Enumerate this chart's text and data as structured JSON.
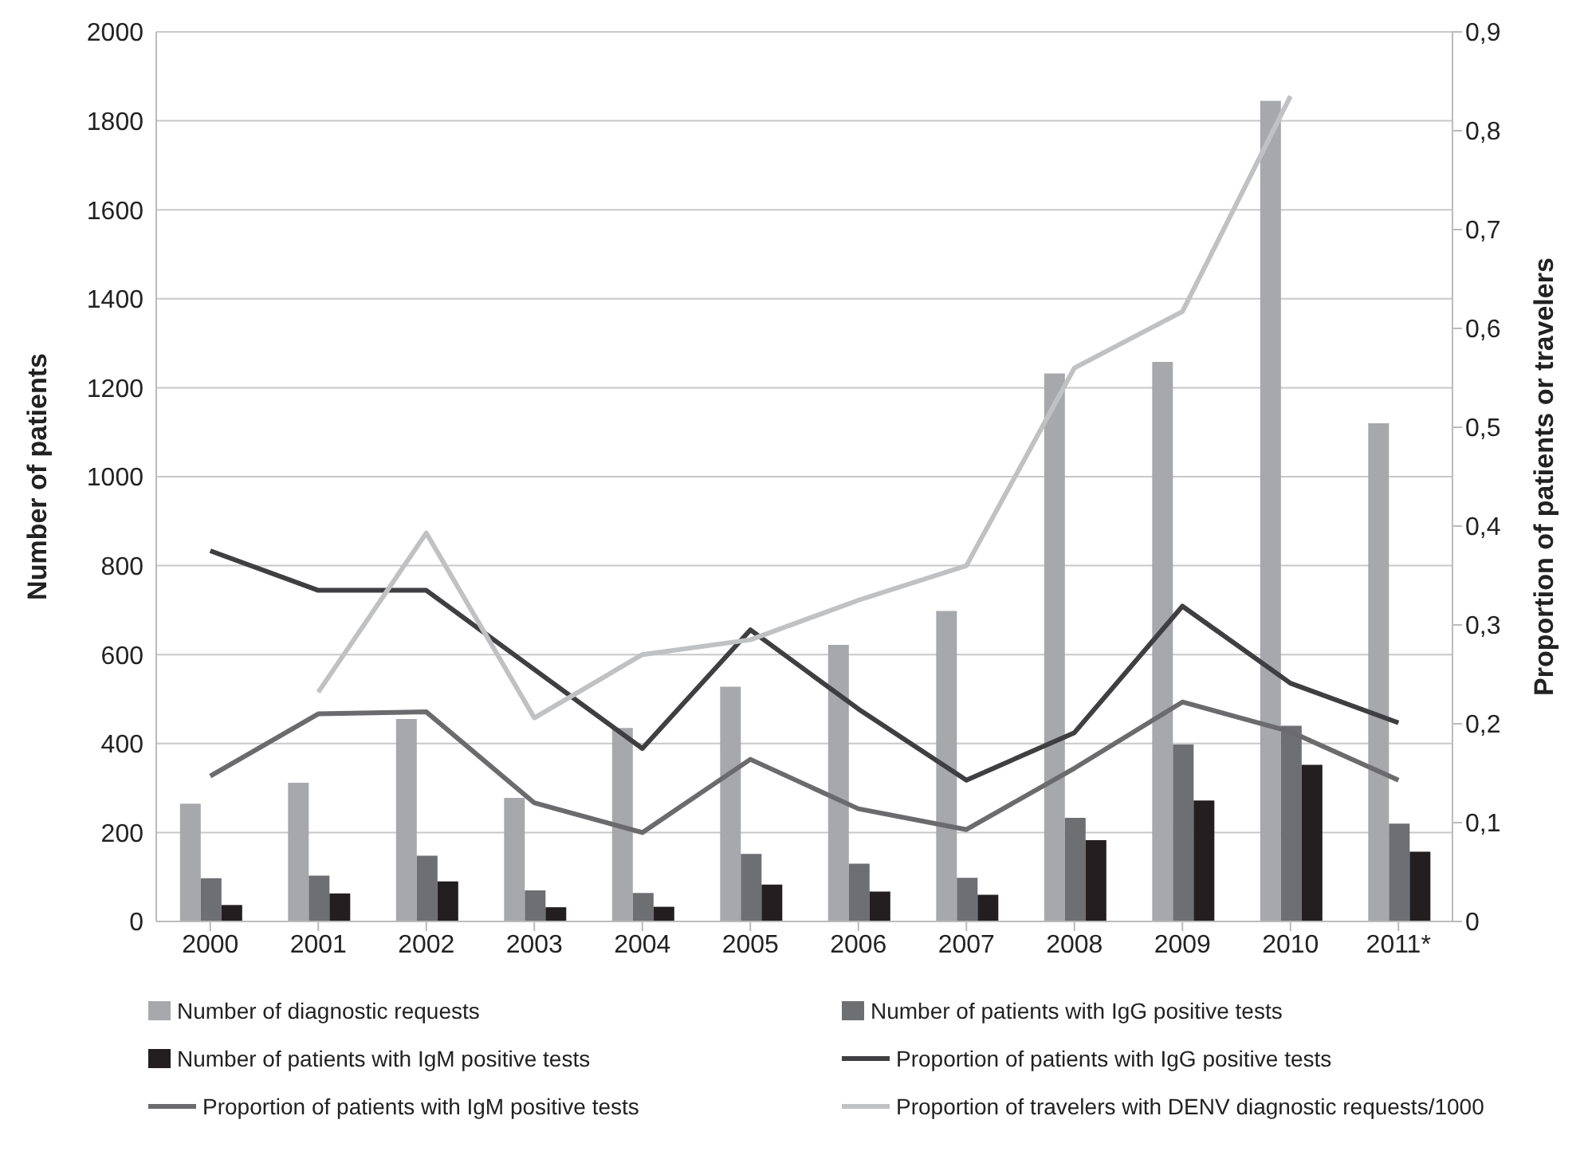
{
  "chart_data": {
    "type": "bar",
    "categories": [
      "2000",
      "2001",
      "2002",
      "2003",
      "2004",
      "2005",
      "2006",
      "2007",
      "2008",
      "2009",
      "2010",
      "2011*"
    ],
    "ylabel": "Number of patients",
    "y2label": "Proportion of patients or travelers",
    "ylim": [
      0,
      2000
    ],
    "yticks": [
      0,
      200,
      400,
      600,
      800,
      1000,
      1200,
      1400,
      1600,
      1800,
      2000
    ],
    "y2lim": [
      0,
      0.9
    ],
    "y2ticks": [
      0,
      {
        "value": 0.1,
        "label": "0,1"
      },
      {
        "value": 0.2,
        "label": "0,2"
      },
      {
        "value": 0.3,
        "label": "0,3"
      },
      {
        "value": 0.4,
        "label": "0,4"
      },
      {
        "value": 0.5,
        "label": "0,5"
      },
      {
        "value": 0.6,
        "label": "0,6"
      },
      {
        "value": 0.7,
        "label": "0,7"
      },
      {
        "value": 0.8,
        "label": "0,8"
      },
      {
        "value": 0.9,
        "label": "0,9"
      }
    ],
    "grid": "y",
    "legend": "bottom",
    "marker": "none",
    "series": [
      {
        "name": "Number of diagnostic requests",
        "color": "#a7a8ac",
        "values": [
          265,
          312,
          455,
          278,
          435,
          528,
          622,
          698,
          1232,
          1258,
          1845,
          1120
        ]
      },
      {
        "name": "Number of patients with IgG positive tests",
        "color": "#6e6f73",
        "values": [
          97,
          103,
          148,
          70,
          64,
          152,
          130,
          98,
          233,
          398,
          440,
          220
        ]
      },
      {
        "name": "Number of patients with IgM positive tests",
        "color": "#231f20",
        "values": [
          37,
          63,
          90,
          32,
          33,
          83,
          67,
          60,
          183,
          272,
          352,
          157
        ]
      },
      {
        "name": "Proportion of patients with IgG positive tests",
        "type": "line",
        "axis": "y2",
        "color": "#3f3f42",
        "values": [
          0.375,
          0.335,
          0.335,
          0.255,
          0.175,
          0.295,
          0.215,
          0.143,
          0.191,
          0.319,
          0.241,
          0.201
        ]
      },
      {
        "name": "Proportion of patients with IgM positive tests",
        "type": "line",
        "axis": "y2",
        "color": "#6b6b6e",
        "values": [
          0.147,
          0.21,
          0.212,
          0.12,
          0.09,
          0.164,
          0.114,
          0.093,
          0.155,
          0.222,
          0.192,
          0.143
        ]
      },
      {
        "name": "Proportion of travelers with DENV diagnostic requests/1000",
        "type": "line",
        "axis": "y2",
        "color": "#c0c1c3",
        "values": [
          null,
          0.232,
          0.393,
          0.206,
          0.27,
          0.285,
          0.325,
          0.36,
          0.56,
          0.617,
          0.835,
          null
        ]
      }
    ]
  }
}
